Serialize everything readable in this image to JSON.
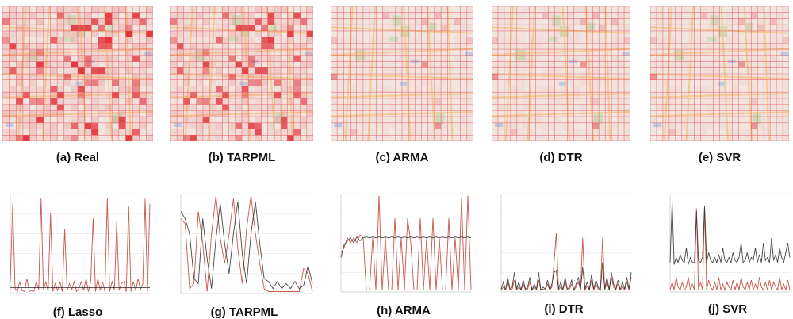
{
  "captions": {
    "a": "(a) Real",
    "b": "(b) TARPML",
    "c": "(c) ARMA",
    "d": "(d) DTR",
    "e": "(e) SVR",
    "f": "(f) Lasso",
    "g": "(g) TARPML",
    "h": "(h) ARMA",
    "i": "(i) DTR",
    "j": "(j) SVR"
  },
  "colors": {
    "grid_line": "#e4595e",
    "cell_heavy": "#e0212b",
    "map_bg": "#f4efe9",
    "road": "#f6d49a",
    "park": "#cfe6c4",
    "water": "#bcd3f2",
    "series_red": "#c0392b",
    "series_dark": "#333333"
  },
  "heat_intensity": {
    "a": 1.0,
    "b": 0.85,
    "c": 0.25,
    "d": 0.32,
    "e": 0.28
  },
  "chart_data": [
    {
      "type": "line",
      "panel": "f",
      "series": [
        {
          "color": "#c0392b",
          "values": [
            0.12,
            0.9,
            0.05,
            0.02,
            0.12,
            0.03,
            0.02,
            0.15,
            0.02,
            0.03,
            0.02,
            0.12,
            0.04,
            0.95,
            0.03,
            0.12,
            0.02,
            0.8,
            0.02,
            0.1,
            0.03,
            0.12,
            0.02,
            0.65,
            0.03,
            0.1,
            0.04,
            0.12,
            0.02,
            0.05,
            0.12,
            0.03,
            0.15,
            0.02,
            0.12,
            0.75,
            0.02,
            0.15,
            0.03,
            0.12,
            0.02,
            0.95,
            0.02,
            0.12,
            0.04,
            0.72,
            0.03,
            0.1,
            0.12,
            0.02,
            0.88,
            0.02,
            0.12,
            0.03,
            0.15,
            0.04,
            0.1,
            0.95,
            0.02,
            0.9
          ]
        },
        {
          "color": "#333333",
          "values": [
            0.06,
            0.06,
            0.06,
            0.06,
            0.06,
            0.06,
            0.06,
            0.06,
            0.06,
            0.06,
            0.06,
            0.06,
            0.06,
            0.06,
            0.06,
            0.06,
            0.06,
            0.06,
            0.06,
            0.06,
            0.06,
            0.06,
            0.06,
            0.06,
            0.06,
            0.06,
            0.06,
            0.06,
            0.06,
            0.06,
            0.06,
            0.06,
            0.06,
            0.06,
            0.06,
            0.06,
            0.06,
            0.06,
            0.06,
            0.06,
            0.06,
            0.06,
            0.06,
            0.06,
            0.06,
            0.06,
            0.06,
            0.06,
            0.06,
            0.06,
            0.06,
            0.06,
            0.06,
            0.06,
            0.06,
            0.06,
            0.06,
            0.06,
            0.06,
            0.06
          ]
        }
      ]
    },
    {
      "type": "line",
      "panel": "g",
      "series": [
        {
          "color": "#c0392b",
          "values": [
            0.75,
            0.7,
            0.05,
            0.1,
            0.82,
            0.5,
            0.02,
            0.6,
            0.98,
            0.55,
            0.3,
            0.6,
            0.95,
            0.45,
            0.1,
            0.65,
            0.98,
            0.6,
            0.3,
            0.05,
            0.02,
            0.02,
            0.02,
            0.02,
            0.02,
            0.02,
            0.02,
            0.02,
            0.25,
            0.2,
            0.02
          ]
        },
        {
          "color": "#333333",
          "values": [
            0.82,
            0.75,
            0.6,
            0.15,
            0.1,
            0.75,
            0.35,
            0.05,
            0.55,
            0.9,
            0.5,
            0.2,
            0.6,
            0.92,
            0.4,
            0.1,
            0.6,
            0.92,
            0.5,
            0.15,
            0.12,
            0.05,
            0.12,
            0.05,
            0.1,
            0.05,
            0.12,
            0.05,
            0.08,
            0.28,
            0.1
          ]
        }
      ]
    },
    {
      "type": "line",
      "panel": "h",
      "series": [
        {
          "color": "#c0392b",
          "values": [
            0.4,
            0.45,
            0.55,
            0.5,
            0.55,
            0.5,
            0.58,
            0.55,
            0.02,
            0.02,
            0.55,
            0.02,
            0.98,
            0.02,
            0.55,
            0.02,
            0.02,
            0.75,
            0.02,
            0.55,
            0.02,
            0.75,
            0.5,
            0.02,
            0.02,
            0.75,
            0.02,
            0.55,
            0.02,
            0.75,
            0.02,
            0.55,
            0.02,
            0.02,
            0.75,
            0.02,
            0.55,
            0.02,
            0.95,
            0.02,
            0.98,
            0.02
          ]
        },
        {
          "color": "#333333",
          "values": [
            0.35,
            0.48,
            0.52,
            0.55,
            0.5,
            0.56,
            0.52,
            0.55,
            0.56,
            0.55,
            0.56,
            0.55,
            0.56,
            0.55,
            0.56,
            0.55,
            0.56,
            0.55,
            0.56,
            0.55,
            0.56,
            0.55,
            0.56,
            0.55,
            0.56,
            0.55,
            0.56,
            0.55,
            0.56,
            0.55,
            0.56,
            0.55,
            0.56,
            0.55,
            0.56,
            0.55,
            0.56,
            0.55,
            0.56,
            0.55,
            0.56,
            0.55
          ]
        }
      ]
    },
    {
      "type": "line",
      "panel": "i",
      "series": [
        {
          "color": "#c0392b",
          "values": [
            0.02,
            0.05,
            0.02,
            0.1,
            0.02,
            0.03,
            0.12,
            0.02,
            0.05,
            0.02,
            0.08,
            0.02,
            0.03,
            0.1,
            0.02,
            0.05,
            0.02,
            0.12,
            0.02,
            0.03,
            0.02,
            0.08,
            0.02,
            0.05,
            0.3,
            0.6,
            0.02,
            0.05,
            0.02,
            0.1,
            0.02,
            0.03,
            0.08,
            0.02,
            0.05,
            0.1,
            0.02,
            0.55,
            0.02,
            0.06,
            0.02,
            0.12,
            0.02,
            0.08,
            0.03,
            0.02,
            0.55,
            0.02,
            0.1,
            0.02,
            0.15,
            0.05,
            0.02,
            0.08,
            0.02,
            0.05,
            0.02,
            0.1,
            0.02,
            0.15
          ]
        },
        {
          "color": "#333333",
          "values": [
            0.03,
            0.1,
            0.02,
            0.15,
            0.03,
            0.05,
            0.2,
            0.03,
            0.1,
            0.02,
            0.12,
            0.03,
            0.05,
            0.15,
            0.02,
            0.08,
            0.03,
            0.2,
            0.02,
            0.05,
            0.03,
            0.12,
            0.02,
            0.08,
            0.2,
            0.22,
            0.03,
            0.1,
            0.02,
            0.15,
            0.03,
            0.05,
            0.12,
            0.02,
            0.08,
            0.15,
            0.03,
            0.25,
            0.03,
            0.1,
            0.02,
            0.18,
            0.03,
            0.12,
            0.05,
            0.02,
            0.3,
            0.03,
            0.15,
            0.02,
            0.2,
            0.08,
            0.03,
            0.12,
            0.02,
            0.1,
            0.03,
            0.15,
            0.03,
            0.2
          ]
        }
      ]
    },
    {
      "type": "line",
      "panel": "j",
      "series": [
        {
          "color": "#c0392b",
          "values": [
            0.02,
            0.1,
            0.02,
            0.15,
            0.05,
            0.02,
            0.1,
            0.02,
            0.05,
            0.15,
            0.02,
            0.08,
            0.02,
            0.85,
            0.02,
            0.1,
            0.02,
            0.85,
            0.02,
            0.12,
            0.05,
            0.02,
            0.1,
            0.02,
            0.15,
            0.02,
            0.08,
            0.02,
            0.1,
            0.05,
            0.02,
            0.12,
            0.02,
            0.1,
            0.02,
            0.15,
            0.05,
            0.02,
            0.1,
            0.02,
            0.12,
            0.02,
            0.08,
            0.02,
            0.15,
            0.05,
            0.02,
            0.1,
            0.02,
            0.12,
            0.02,
            0.1,
            0.05,
            0.02,
            0.15,
            0.02,
            0.08,
            0.02,
            0.12,
            0.02
          ]
        },
        {
          "color": "#333333",
          "values": [
            0.3,
            0.92,
            0.28,
            0.35,
            0.3,
            0.38,
            0.32,
            0.3,
            0.45,
            0.28,
            0.35,
            0.3,
            0.3,
            0.82,
            0.32,
            0.3,
            0.35,
            0.88,
            0.3,
            0.4,
            0.32,
            0.3,
            0.35,
            0.3,
            0.38,
            0.3,
            0.45,
            0.32,
            0.3,
            0.35,
            0.3,
            0.4,
            0.32,
            0.3,
            0.35,
            0.5,
            0.3,
            0.32,
            0.4,
            0.3,
            0.35,
            0.32,
            0.45,
            0.3,
            0.38,
            0.3,
            0.5,
            0.32,
            0.35,
            0.3,
            0.55,
            0.32,
            0.38,
            0.3,
            0.45,
            0.35,
            0.3,
            0.4,
            0.5,
            0.35
          ]
        }
      ]
    }
  ]
}
